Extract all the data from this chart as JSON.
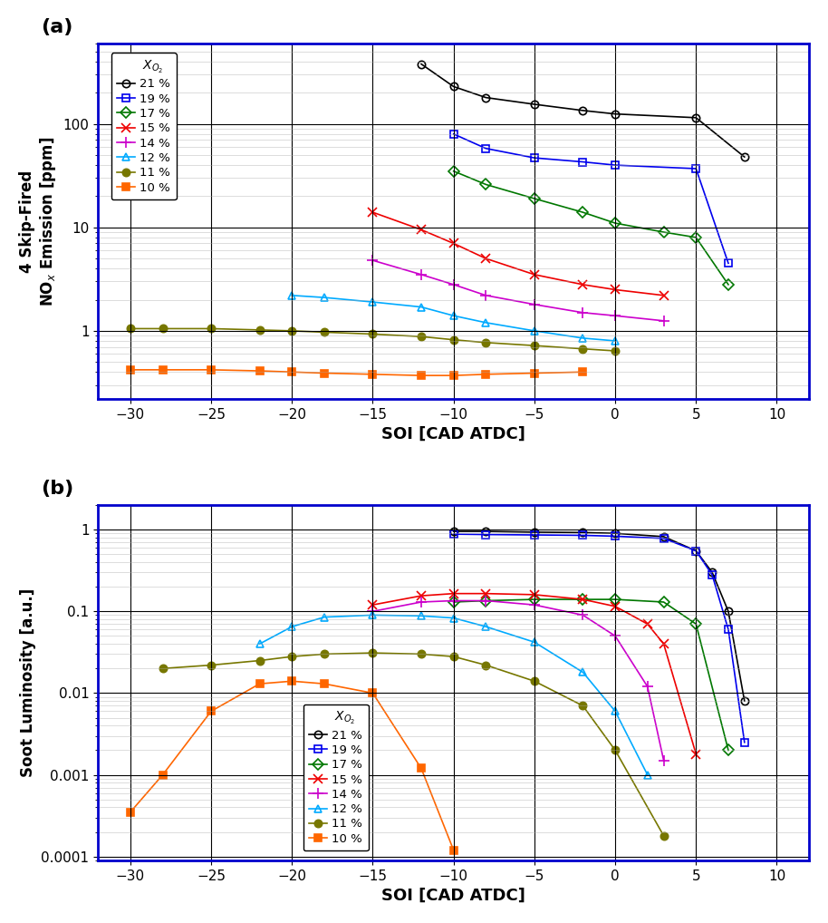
{
  "nox": {
    "21": {
      "x": [
        -12,
        -10,
        -8,
        -5,
        -2,
        0,
        5,
        8
      ],
      "y": [
        380,
        230,
        180,
        155,
        135,
        125,
        115,
        48
      ]
    },
    "19": {
      "x": [
        -10,
        -8,
        -5,
        -2,
        0,
        5,
        7
      ],
      "y": [
        80,
        58,
        47,
        43,
        40,
        37,
        4.5
      ]
    },
    "17": {
      "x": [
        -10,
        -8,
        -5,
        -2,
        0,
        3,
        5,
        7
      ],
      "y": [
        35,
        26,
        19,
        14,
        11,
        9,
        8,
        2.8
      ]
    },
    "15": {
      "x": [
        -15,
        -12,
        -10,
        -8,
        -5,
        -2,
        0,
        3
      ],
      "y": [
        14,
        9.5,
        7.0,
        5.0,
        3.5,
        2.8,
        2.5,
        2.2
      ]
    },
    "14": {
      "x": [
        -15,
        -12,
        -10,
        -8,
        -5,
        -2,
        0,
        3
      ],
      "y": [
        4.8,
        3.5,
        2.8,
        2.2,
        1.8,
        1.5,
        1.4,
        1.25
      ]
    },
    "12": {
      "x": [
        -20,
        -18,
        -15,
        -12,
        -10,
        -8,
        -5,
        -2,
        0
      ],
      "y": [
        2.2,
        2.1,
        1.9,
        1.7,
        1.4,
        1.2,
        1.0,
        0.85,
        0.8
      ]
    },
    "11": {
      "x": [
        -30,
        -28,
        -25,
        -22,
        -20,
        -18,
        -15,
        -12,
        -10,
        -8,
        -5,
        -2,
        0
      ],
      "y": [
        1.05,
        1.05,
        1.05,
        1.02,
        1.0,
        0.97,
        0.93,
        0.88,
        0.82,
        0.77,
        0.72,
        0.67,
        0.64
      ]
    },
    "10": {
      "x": [
        -30,
        -28,
        -25,
        -22,
        -20,
        -18,
        -15,
        -12,
        -10,
        -8,
        -5,
        -2
      ],
      "y": [
        0.42,
        0.42,
        0.42,
        0.41,
        0.4,
        0.39,
        0.38,
        0.37,
        0.37,
        0.38,
        0.39,
        0.4
      ]
    }
  },
  "soot": {
    "21": {
      "x": [
        -10,
        -8,
        -5,
        -2,
        0,
        3,
        5,
        6,
        7,
        8
      ],
      "y": [
        0.95,
        0.95,
        0.93,
        0.92,
        0.9,
        0.82,
        0.55,
        0.3,
        0.1,
        0.008
      ]
    },
    "19": {
      "x": [
        -10,
        -8,
        -5,
        -2,
        0,
        3,
        5,
        6,
        7,
        8
      ],
      "y": [
        0.88,
        0.87,
        0.86,
        0.85,
        0.83,
        0.78,
        0.55,
        0.28,
        0.06,
        0.0025
      ]
    },
    "17": {
      "x": [
        -10,
        -8,
        -5,
        -2,
        0,
        3,
        5,
        7
      ],
      "y": [
        0.13,
        0.135,
        0.14,
        0.14,
        0.14,
        0.13,
        0.07,
        0.002
      ]
    },
    "15": {
      "x": [
        -15,
        -12,
        -10,
        -8,
        -5,
        -2,
        0,
        2,
        3,
        5
      ],
      "y": [
        0.12,
        0.155,
        0.165,
        0.165,
        0.16,
        0.14,
        0.115,
        0.07,
        0.04,
        0.0018
      ]
    },
    "14": {
      "x": [
        -15,
        -12,
        -10,
        -8,
        -5,
        -2,
        0,
        2,
        3
      ],
      "y": [
        0.1,
        0.13,
        0.135,
        0.135,
        0.12,
        0.09,
        0.05,
        0.012,
        0.0015
      ]
    },
    "12": {
      "x": [
        -22,
        -20,
        -18,
        -15,
        -12,
        -10,
        -8,
        -5,
        -2,
        0,
        2
      ],
      "y": [
        0.04,
        0.065,
        0.085,
        0.09,
        0.088,
        0.083,
        0.065,
        0.042,
        0.018,
        0.006,
        0.001
      ]
    },
    "11": {
      "x": [
        -28,
        -25,
        -22,
        -20,
        -18,
        -15,
        -12,
        -10,
        -8,
        -5,
        -2,
        0,
        3
      ],
      "y": [
        0.02,
        0.022,
        0.025,
        0.028,
        0.03,
        0.031,
        0.03,
        0.028,
        0.022,
        0.014,
        0.007,
        0.002,
        0.00018
      ]
    },
    "10": {
      "x": [
        -30,
        -28,
        -25,
        -22,
        -20,
        -18,
        -15,
        -12,
        -10
      ],
      "y": [
        0.00035,
        0.001,
        0.006,
        0.013,
        0.014,
        0.013,
        0.01,
        0.0012,
        0.00012
      ]
    }
  },
  "series_styles": {
    "21": {
      "color": "#000000",
      "marker": "o",
      "markersize": 6,
      "markerfacecolor": "none",
      "linestyle": "-"
    },
    "19": {
      "color": "#0000EE",
      "marker": "s",
      "markersize": 6,
      "markerfacecolor": "none",
      "linestyle": "-"
    },
    "17": {
      "color": "#007700",
      "marker": "D",
      "markersize": 6,
      "markerfacecolor": "none",
      "linestyle": "-"
    },
    "15": {
      "color": "#EE0000",
      "marker": "x",
      "markersize": 7,
      "markerfacecolor": "#EE0000",
      "linestyle": "-"
    },
    "14": {
      "color": "#CC00CC",
      "marker": "+",
      "markersize": 8,
      "markerfacecolor": "#CC00CC",
      "linestyle": "-"
    },
    "12": {
      "color": "#00AAFF",
      "marker": "^",
      "markersize": 6,
      "markerfacecolor": "none",
      "linestyle": "-"
    },
    "11": {
      "color": "#777700",
      "marker": "o",
      "markersize": 6,
      "markerfacecolor": "#777700",
      "linestyle": "-"
    },
    "10": {
      "color": "#FF6600",
      "marker": "s",
      "markersize": 6,
      "markerfacecolor": "#FF6600",
      "linestyle": "-"
    }
  },
  "legend_labels": {
    "21": "21 %",
    "19": "19 %",
    "17": "17 %",
    "15": "15 %",
    "14": "14 %",
    "12": "12 %",
    "11": "11 %",
    "10": "10 %"
  },
  "xlim": [
    -32,
    12
  ],
  "xticks": [
    -30,
    -25,
    -20,
    -15,
    -10,
    -5,
    0,
    5,
    10
  ],
  "nox_ylim": [
    0.22,
    600
  ],
  "nox_yticks": [
    1,
    10,
    100
  ],
  "soot_ylim": [
    9e-05,
    2.0
  ],
  "soot_yticks": [
    0.0001,
    0.001,
    0.01,
    0.1,
    1
  ],
  "xlabel": "SOI [CAD ATDC]",
  "nox_ylabel": "4 Skip-Fired\nNO$_x$ Emission [ppm]",
  "soot_ylabel": "Soot Luminosity [a.u.]",
  "panel_a": "(a)",
  "panel_b": "(b)",
  "bg_color": "#FFFFFF",
  "border_color": "#0000CC",
  "major_grid_color": "#000000",
  "minor_grid_color": "#AAAAAA"
}
